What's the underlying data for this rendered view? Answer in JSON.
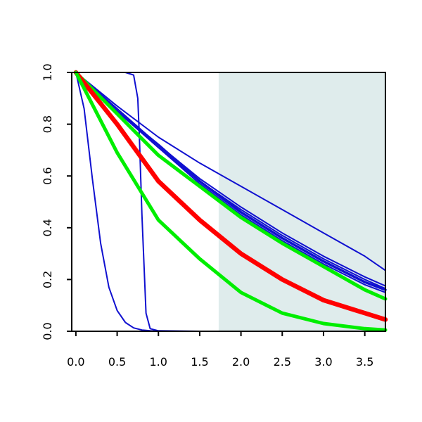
{
  "chart_data": {
    "type": "line",
    "title": "",
    "xlabel": "",
    "ylabel": "",
    "xlim": [
      -0.05,
      3.75
    ],
    "ylim": [
      0.0,
      1.0
    ],
    "x_ticks": [
      0.0,
      0.5,
      1.0,
      1.5,
      2.0,
      2.5,
      3.0,
      3.5
    ],
    "x_tick_labels": [
      "0.0",
      "0.5",
      "1.0",
      "1.5",
      "2.0",
      "2.5",
      "3.0",
      "3.5"
    ],
    "y_ticks": [
      0.0,
      0.2,
      0.4,
      0.6,
      0.8,
      1.0
    ],
    "y_tick_labels": [
      "0.0",
      "0.2",
      "0.4",
      "0.6",
      "0.8",
      "1.0"
    ],
    "grid": false,
    "legend": "none",
    "shaded_region": {
      "x_start": 1.73,
      "x_end": 3.75,
      "color": "#dfecec"
    },
    "series": [
      {
        "color": "#1010d0",
        "weight": "thin",
        "x": [
          0.0,
          0.1,
          0.2,
          0.3,
          0.4,
          0.5,
          0.6,
          0.7,
          0.8,
          0.9,
          1.0
        ],
        "y": [
          1.0,
          0.86,
          0.59,
          0.34,
          0.17,
          0.08,
          0.034,
          0.013,
          0.005,
          0.002,
          0.0
        ]
      },
      {
        "color": "#1010d0",
        "weight": "thin",
        "x": [
          0.0,
          0.6,
          0.7,
          0.75,
          0.77,
          0.8,
          0.85,
          0.9,
          1.0,
          1.5,
          3.75
        ],
        "y": [
          1.0,
          1.0,
          0.99,
          0.9,
          0.75,
          0.45,
          0.07,
          0.01,
          0.002,
          0.0,
          0.0
        ]
      },
      {
        "color": "#1010d0",
        "weight": "thin",
        "x": [
          0.0,
          0.5,
          1.0,
          1.5,
          2.0,
          2.5,
          3.0,
          3.5,
          3.75
        ],
        "y": [
          1.0,
          0.87,
          0.75,
          0.65,
          0.56,
          0.47,
          0.38,
          0.29,
          0.235
        ]
      },
      {
        "color": "#1010d0",
        "weight": "thin",
        "x": [
          0.0,
          0.5,
          1.0,
          1.5,
          2.0,
          2.5,
          3.0,
          3.5,
          3.75
        ],
        "y": [
          1.0,
          0.86,
          0.72,
          0.59,
          0.48,
          0.38,
          0.29,
          0.21,
          0.175
        ]
      },
      {
        "color": "#1010d0",
        "weight": "thin",
        "x": [
          0.0,
          0.5,
          1.0,
          1.5,
          2.0,
          2.5,
          3.0,
          3.5,
          3.75
        ],
        "y": [
          1.0,
          0.85,
          0.71,
          0.58,
          0.47,
          0.37,
          0.28,
          0.2,
          0.165
        ]
      },
      {
        "color": "#1010d0",
        "weight": "medium",
        "x": [
          0.0,
          0.5,
          1.0,
          1.5,
          2.0,
          2.5,
          3.0,
          3.5,
          3.75
        ],
        "y": [
          1.0,
          0.85,
          0.72,
          0.58,
          0.46,
          0.36,
          0.27,
          0.19,
          0.16
        ]
      },
      {
        "color": "#1010d0",
        "weight": "thin",
        "x": [
          0.0,
          0.5,
          1.0,
          1.5,
          2.0,
          2.5,
          3.0,
          3.5,
          3.75
        ],
        "y": [
          1.0,
          0.85,
          0.71,
          0.57,
          0.45,
          0.35,
          0.26,
          0.18,
          0.15
        ]
      },
      {
        "color": "#00ee00",
        "weight": "thick",
        "x": [
          0.0,
          0.5,
          1.0,
          1.5,
          2.0,
          2.5,
          3.0,
          3.5,
          3.75
        ],
        "y": [
          1.0,
          0.84,
          0.68,
          0.56,
          0.44,
          0.34,
          0.25,
          0.16,
          0.125
        ]
      },
      {
        "color": "#ff0000",
        "weight": "thicker",
        "x": [
          0.0,
          0.5,
          1.0,
          1.5,
          2.0,
          2.5,
          3.0,
          3.5,
          3.75
        ],
        "y": [
          1.0,
          0.8,
          0.58,
          0.43,
          0.3,
          0.2,
          0.12,
          0.07,
          0.045
        ]
      },
      {
        "color": "#00ee00",
        "weight": "thick",
        "x": [
          0.0,
          0.5,
          1.0,
          1.5,
          2.0,
          2.5,
          3.0,
          3.5,
          3.75
        ],
        "y": [
          1.0,
          0.69,
          0.43,
          0.28,
          0.15,
          0.07,
          0.03,
          0.01,
          0.005
        ]
      }
    ]
  }
}
